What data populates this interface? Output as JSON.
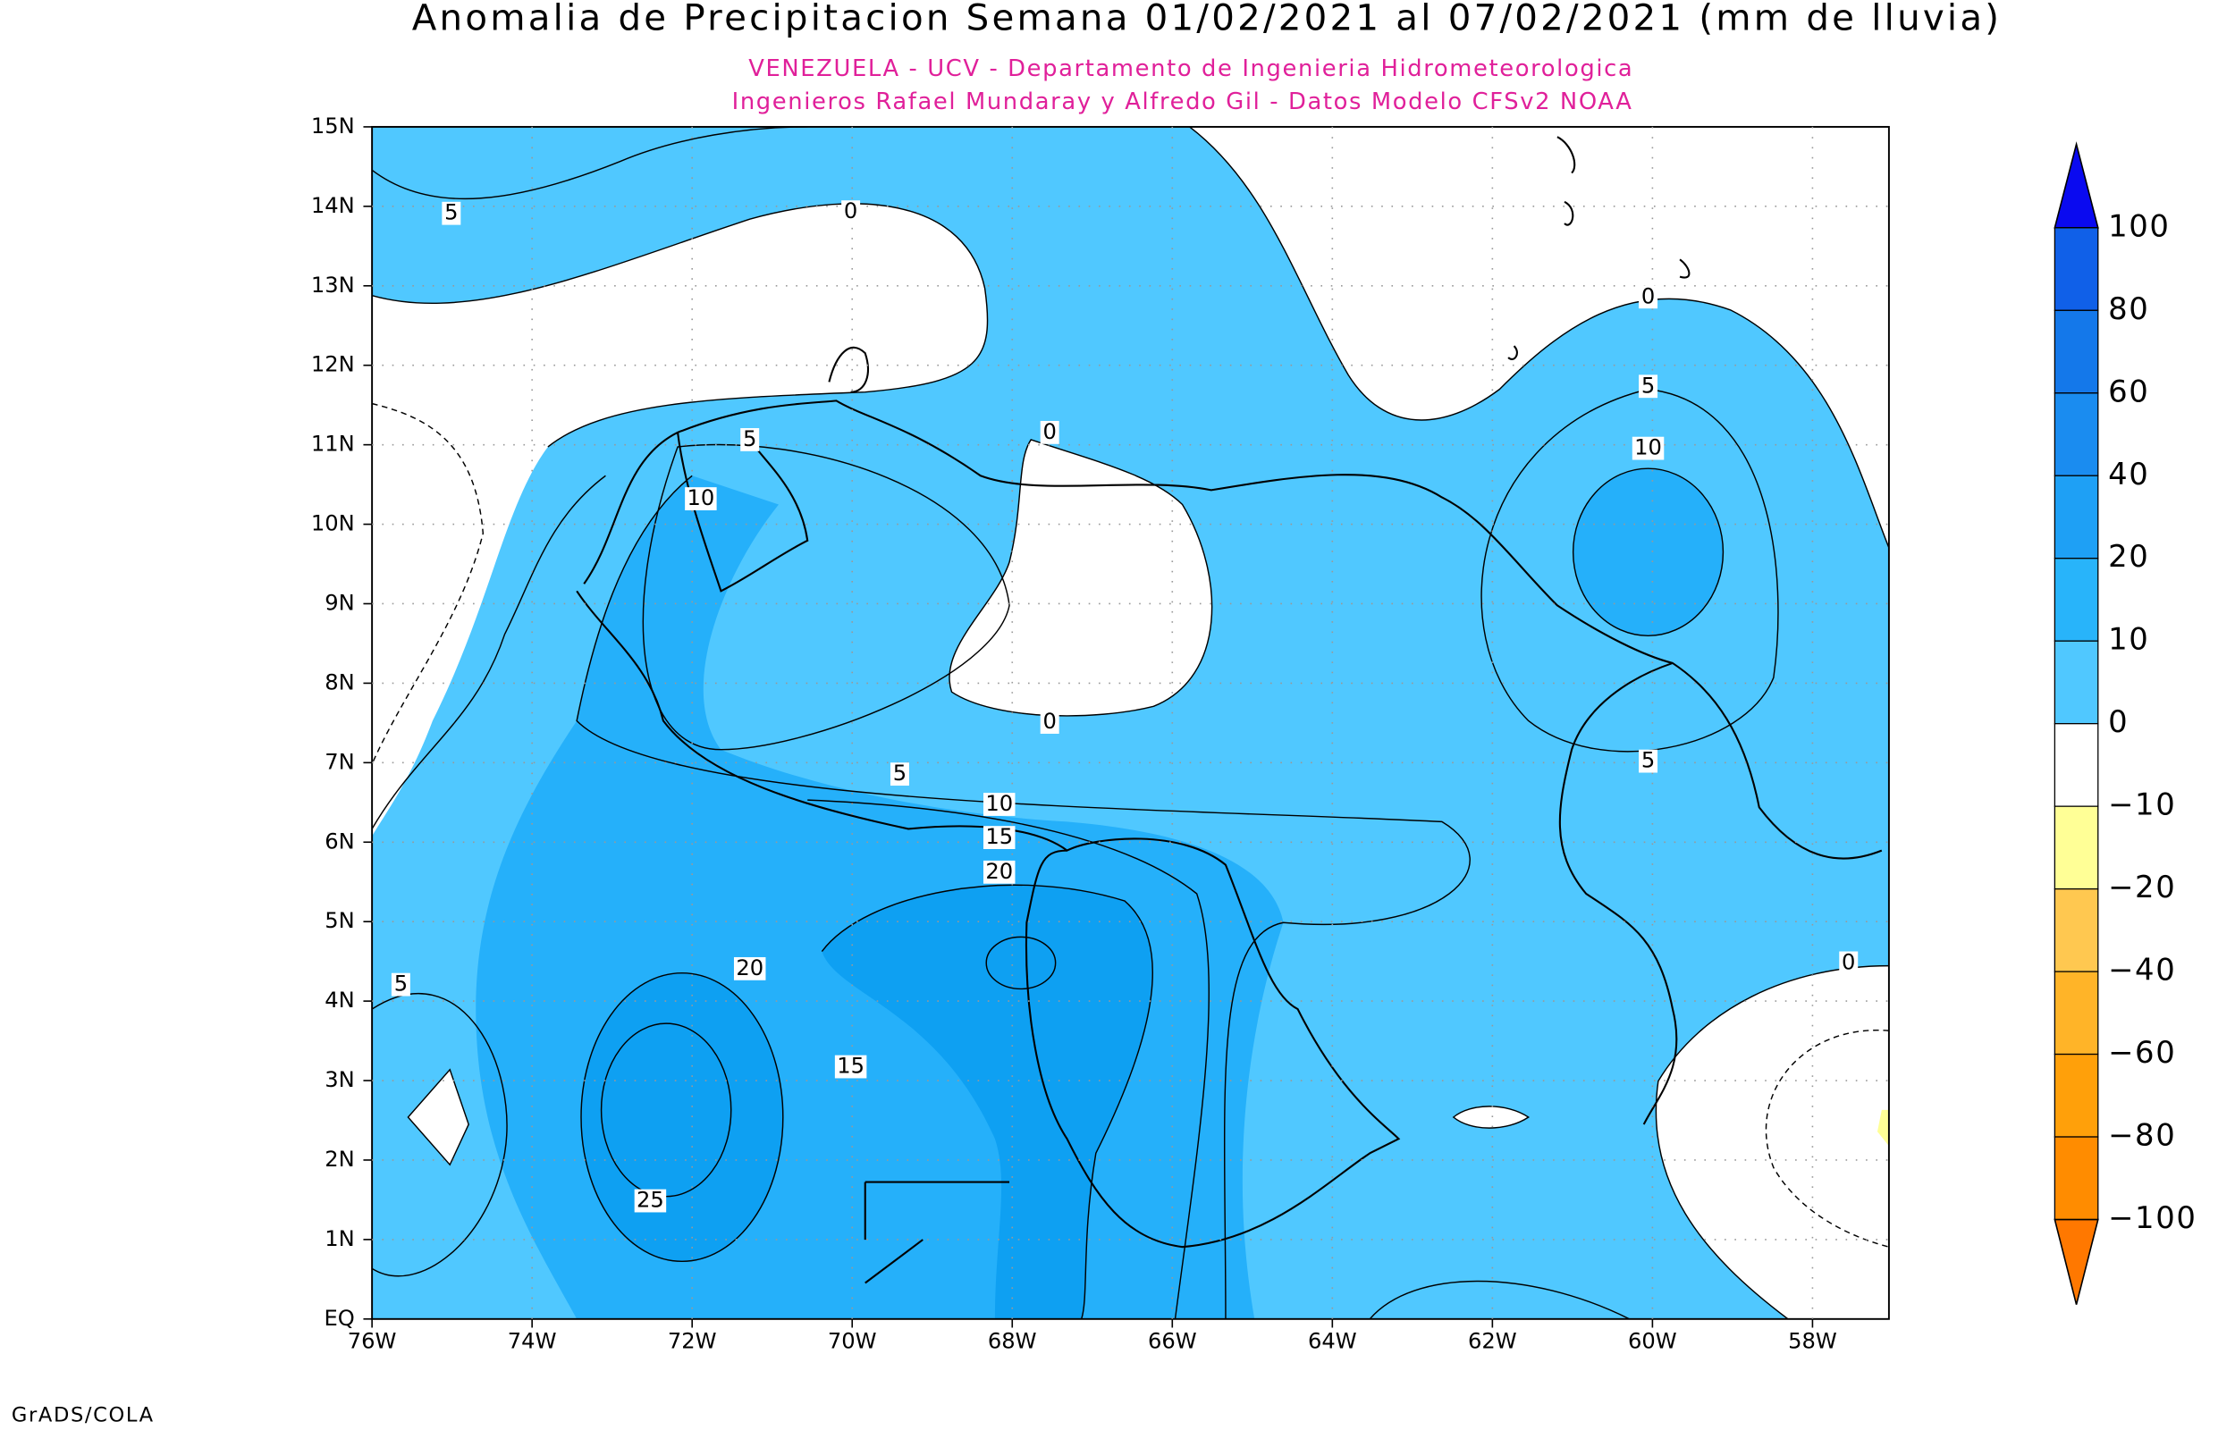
{
  "header": {
    "title": "Anomalia de Precipitacion Semana 01/02/2021 al 07/02/2021 (mm de lluvia)",
    "subtitle_lines": [
      "VENEZUELA - UCV - Departamento de Ingenieria Hidrometeorologica",
      "Ingenieros Rafael Mundaray y Alfredo Gil - Datos Modelo CFSv2 NOAA"
    ]
  },
  "map": {
    "lat_labels": [
      "15N",
      "14N",
      "13N",
      "12N",
      "11N",
      "10N",
      "9N",
      "8N",
      "7N",
      "6N",
      "5N",
      "4N",
      "3N",
      "2N",
      "1N",
      "EQ"
    ],
    "lon_labels": [
      "76W",
      "74W",
      "72W",
      "70W",
      "68W",
      "66W",
      "64W",
      "62W",
      "60W",
      "58W"
    ],
    "contour_labels": [
      "5",
      "0",
      "0",
      "5",
      "10",
      "0",
      "5",
      "10",
      "0",
      "5",
      "5",
      "10",
      "15",
      "20",
      "20",
      "5",
      "15",
      "25",
      "0"
    ]
  },
  "colorbar": {
    "labels": [
      "100",
      "80",
      "60",
      "40",
      "20",
      "10",
      "0",
      "−10",
      "−20",
      "−40",
      "−60",
      "−80",
      "−100"
    ]
  },
  "footer": "GrADS/COLA"
}
